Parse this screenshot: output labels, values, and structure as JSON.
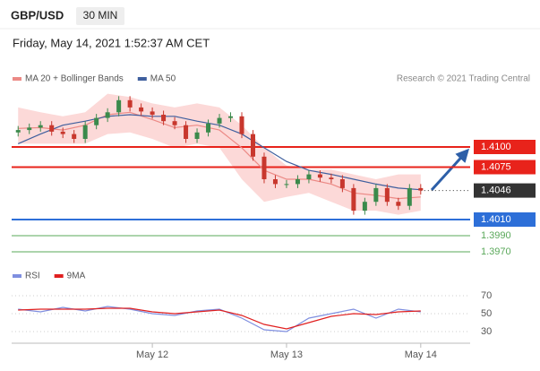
{
  "header": {
    "symbol": "GBP/USD",
    "interval": "30 MIN",
    "datetime": "Friday, May 14, 2021 1:52:37 AM CET",
    "credit": "Research © 2021 Trading Central"
  },
  "chart_data": [
    {
      "type": "candlestick",
      "xlim": [
        -1,
        81
      ],
      "ylim": [
        1.396,
        1.417
      ],
      "x": [
        0,
        2,
        4,
        6,
        8,
        10,
        12,
        14,
        16,
        18,
        20,
        22,
        24,
        26,
        28,
        30,
        32,
        34,
        36,
        38,
        40,
        42,
        44,
        46,
        48,
        50,
        52,
        54,
        56,
        58,
        60,
        62,
        64,
        66,
        68,
        70,
        72
      ],
      "open": [
        1.4118,
        1.4121,
        1.4124,
        1.4127,
        1.4119,
        1.4116,
        1.411,
        1.4127,
        1.4136,
        1.4143,
        1.4158,
        1.4149,
        1.4144,
        1.414,
        1.4132,
        1.4127,
        1.411,
        1.4118,
        1.4129,
        1.4136,
        1.4138,
        1.4116,
        1.4088,
        1.406,
        1.4054,
        1.4054,
        1.406,
        1.4066,
        1.4062,
        1.406,
        1.4049,
        1.4021,
        1.4032,
        1.4049,
        1.4032,
        1.4027,
        1.4049
      ],
      "high": [
        1.4126,
        1.4129,
        1.4132,
        1.4132,
        1.4124,
        1.4121,
        1.4132,
        1.4141,
        1.4148,
        1.4163,
        1.4163,
        1.4154,
        1.4149,
        1.4145,
        1.4137,
        1.4132,
        1.4123,
        1.4134,
        1.4141,
        1.4143,
        1.4143,
        1.4121,
        1.4093,
        1.4065,
        1.4059,
        1.4065,
        1.4071,
        1.4071,
        1.4067,
        1.4065,
        1.4054,
        1.4037,
        1.4054,
        1.4054,
        1.4037,
        1.4054,
        1.4054
      ],
      "low": [
        1.4113,
        1.4116,
        1.4119,
        1.4114,
        1.4111,
        1.4105,
        1.4105,
        1.4122,
        1.4131,
        1.4138,
        1.4144,
        1.4139,
        1.4135,
        1.4127,
        1.4122,
        1.4105,
        1.4105,
        1.4113,
        1.4124,
        1.4131,
        1.4111,
        1.4083,
        1.4055,
        1.4049,
        1.4049,
        1.4049,
        1.4055,
        1.4057,
        1.4055,
        1.4044,
        1.4016,
        1.4016,
        1.4027,
        1.4027,
        1.4022,
        1.4022,
        1.4041
      ],
      "close": [
        1.4121,
        1.4124,
        1.4127,
        1.4119,
        1.4116,
        1.411,
        1.4127,
        1.4136,
        1.4143,
        1.4158,
        1.4149,
        1.4144,
        1.414,
        1.4132,
        1.4127,
        1.411,
        1.4118,
        1.4129,
        1.4136,
        1.4138,
        1.4116,
        1.4088,
        1.406,
        1.4054,
        1.4054,
        1.406,
        1.4066,
        1.4062,
        1.406,
        1.4049,
        1.4021,
        1.4032,
        1.4049,
        1.4032,
        1.4027,
        1.4049,
        1.4046
      ],
      "up_color": "#3b8a4c",
      "down_color": "#c8372d",
      "series": [
        {
          "name": "MA 20 + Bollinger Bands",
          "color": "#ec8a86",
          "band_color": "#fcd9d8",
          "x": [
            0,
            4,
            8,
            12,
            16,
            20,
            24,
            28,
            32,
            36,
            40,
            44,
            48,
            52,
            56,
            60,
            64,
            68,
            72
          ],
          "values": [
            1.4123,
            1.4124,
            1.4121,
            1.4127,
            1.414,
            1.4143,
            1.4134,
            1.4124,
            1.4127,
            1.4121,
            1.4099,
            1.4071,
            1.406,
            1.406,
            1.4054,
            1.4043,
            1.404,
            1.4036,
            1.4038
          ],
          "upper": [
            1.4149,
            1.4143,
            1.4138,
            1.4143,
            1.4166,
            1.4162,
            1.4154,
            1.4149,
            1.4154,
            1.4149,
            1.4127,
            1.4099,
            1.4077,
            1.4072,
            1.4072,
            1.4066,
            1.406,
            1.4066,
            1.4066
          ],
          "lower": [
            1.4104,
            1.4104,
            1.4104,
            1.4104,
            1.4116,
            1.4118,
            1.411,
            1.4099,
            1.4104,
            1.4099,
            1.406,
            1.4032,
            1.4038,
            1.4043,
            1.4032,
            1.4021,
            1.4021,
            1.4016,
            1.4021
          ]
        },
        {
          "name": "MA 50",
          "color": "#3f5f9e",
          "x": [
            0,
            4,
            8,
            12,
            16,
            20,
            24,
            28,
            32,
            36,
            40,
            44,
            48,
            52,
            56,
            60,
            64,
            68,
            72
          ],
          "values": [
            1.4104,
            1.4116,
            1.4127,
            1.4132,
            1.4138,
            1.414,
            1.4138,
            1.4138,
            1.4132,
            1.4127,
            1.4116,
            1.4099,
            1.4082,
            1.4071,
            1.4066,
            1.406,
            1.4054,
            1.4049,
            1.4047
          ]
        }
      ],
      "levels": [
        {
          "value": 1.41,
          "label": "1.4100",
          "color": "#e8231b",
          "style": "box"
        },
        {
          "value": 1.4075,
          "label": "1.4075",
          "color": "#e8231b",
          "style": "box"
        },
        {
          "value": 1.4046,
          "label": "1.4046",
          "color": "#333333",
          "style": "last"
        },
        {
          "value": 1.401,
          "label": "1.4010",
          "color": "#2d6fd8",
          "style": "box"
        },
        {
          "value": 1.399,
          "label": "1.3990",
          "color": "#5aa85a",
          "style": "text"
        },
        {
          "value": 1.397,
          "label": "1.3970",
          "color": "#5aa85a",
          "style": "text"
        }
      ]
    },
    {
      "type": "line",
      "xlim": [
        -1,
        81
      ],
      "ylim": [
        20,
        80
      ],
      "yticks": [
        30,
        50,
        70
      ],
      "xticks": [
        {
          "value": 24,
          "label": "May 12"
        },
        {
          "value": 48,
          "label": "May 13"
        },
        {
          "value": 72,
          "label": "May 14"
        }
      ],
      "x": [
        0,
        4,
        8,
        12,
        16,
        20,
        24,
        28,
        32,
        36,
        40,
        44,
        48,
        52,
        56,
        60,
        64,
        68,
        72
      ],
      "series": [
        {
          "name": "RSI",
          "color": "#7f8fe0",
          "values": [
            55,
            52,
            57,
            53,
            58,
            55,
            50,
            48,
            53,
            55,
            45,
            32,
            30,
            45,
            50,
            55,
            45,
            55,
            52
          ]
        },
        {
          "name": "9MA",
          "color": "#e02020",
          "values": [
            54,
            55,
            55,
            55,
            56,
            56,
            52,
            50,
            52,
            54,
            48,
            38,
            33,
            40,
            47,
            50,
            49,
            52,
            53
          ]
        }
      ]
    }
  ]
}
